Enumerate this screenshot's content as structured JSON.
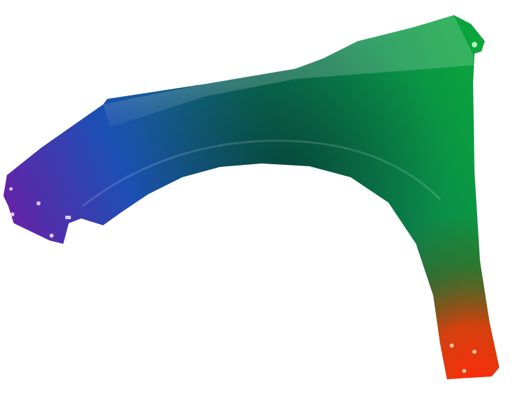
{
  "image": {
    "subject_icon": "car-fender-icon",
    "background": "#ffffff",
    "colors": {
      "purple": "#6a1fa8",
      "blue": "#1c4fb4",
      "teal": "#0a6f5a",
      "green": "#0aa83a",
      "dark_green": "#0b4d20",
      "red": "#ff2a0a"
    }
  }
}
